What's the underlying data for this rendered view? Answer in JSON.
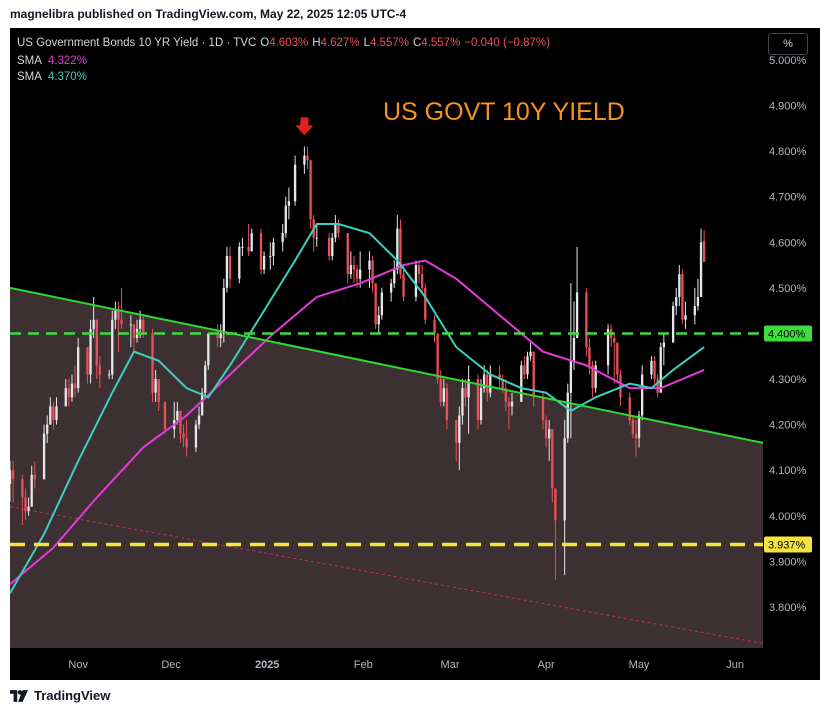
{
  "header": {
    "publisher_line": "magnelibra published on TradingView.com, May 22, 2025 12:05 UTC-4"
  },
  "footer": {
    "brand": "TradingView"
  },
  "legend": {
    "symbol": "US Government Bonds 10 YR Yield · 1D · TVC",
    "o_label": "O",
    "o_value": "4.603%",
    "h_label": "H",
    "h_value": "4.627%",
    "l_label": "L",
    "l_value": "4.557%",
    "c_label": "C",
    "c_value": "4.557%",
    "change": "−0.040 (−0.87%)",
    "sma1_label": "SMA",
    "sma1_value": "4.322%",
    "sma2_label": "SMA",
    "sma2_value": "4.370%"
  },
  "scale_button": "%",
  "colors": {
    "up": "#e6e6e6",
    "down": "#e8505b",
    "sma_fast": "#3ccfc0",
    "sma_slow": "#e63ad8",
    "trendline": "#32d632",
    "level_green": "#3ddc3d",
    "level_yellow": "#f5e43c",
    "annotation": "#f7931e",
    "arrow": "#e02020",
    "fill": "#3d3032",
    "dotted": "#c2305a"
  },
  "chart_data": {
    "type": "candlestick",
    "title": "US GOVT 10Y YIELD",
    "ylim": [
      3.71,
      5.07
    ],
    "yticks": [
      "5.000%",
      "4.900%",
      "4.800%",
      "4.700%",
      "4.600%",
      "4.500%",
      "4.400%",
      "4.300%",
      "4.200%",
      "4.100%",
      "4.000%",
      "3.900%",
      "3.800%"
    ],
    "ytick_values": [
      5.0,
      4.9,
      4.8,
      4.7,
      4.6,
      4.5,
      4.4,
      4.3,
      4.2,
      4.1,
      4.0,
      3.9,
      3.8
    ],
    "xticks": [
      "Nov",
      "Dec",
      "2025",
      "Feb",
      "Mar",
      "Apr",
      "May",
      "Jun"
    ],
    "xtick_dates": [
      "2024-11-01",
      "2024-12-01",
      "2025-01-01",
      "2025-02-01",
      "2025-03-01",
      "2025-04-01",
      "2025-05-01",
      "2025-06-01"
    ],
    "levels": [
      {
        "label": "4.400%",
        "value": 4.4,
        "color": "level_green"
      },
      {
        "label": "3.937%",
        "value": 3.937,
        "color": "level_yellow"
      }
    ],
    "trendline": {
      "start": [
        "2024-10-10",
        4.5
      ],
      "end": [
        "2025-06-10",
        4.16
      ]
    },
    "dotted_trendline": {
      "start": [
        "2024-10-10",
        4.02
      ],
      "end": [
        "2025-06-10",
        3.72
      ]
    },
    "arrow_marker": {
      "date": "2025-01-13",
      "value": 4.83
    },
    "ohlc": [
      [
        "2024-10-10",
        4.07,
        4.12,
        4.03,
        4.1
      ],
      [
        "2024-10-11",
        4.1,
        4.12,
        4.03,
        4.08
      ],
      [
        "2024-10-14",
        4.08,
        4.09,
        3.98,
        4.04
      ],
      [
        "2024-10-15",
        4.04,
        4.06,
        3.99,
        4.01
      ],
      [
        "2024-10-16",
        4.01,
        4.04,
        4.0,
        4.02
      ],
      [
        "2024-10-17",
        4.02,
        4.11,
        4.02,
        4.09
      ],
      [
        "2024-10-18",
        4.09,
        4.12,
        4.06,
        4.08
      ],
      [
        "2024-10-21",
        4.08,
        4.2,
        4.08,
        4.18
      ],
      [
        "2024-10-22",
        4.18,
        4.22,
        4.16,
        4.2
      ],
      [
        "2024-10-23",
        4.2,
        4.26,
        4.2,
        4.24
      ],
      [
        "2024-10-24",
        4.24,
        4.25,
        4.19,
        4.21
      ],
      [
        "2024-10-25",
        4.21,
        4.26,
        4.2,
        4.24
      ],
      [
        "2024-10-28",
        4.24,
        4.3,
        4.24,
        4.28
      ],
      [
        "2024-10-29",
        4.28,
        4.3,
        4.24,
        4.26
      ],
      [
        "2024-10-30",
        4.26,
        4.31,
        4.25,
        4.29
      ],
      [
        "2024-10-31",
        4.29,
        4.33,
        4.26,
        4.28
      ],
      [
        "2024-11-01",
        4.28,
        4.39,
        4.27,
        4.37
      ],
      [
        "2024-11-04",
        4.37,
        4.37,
        4.29,
        4.31
      ],
      [
        "2024-11-05",
        4.31,
        4.43,
        4.29,
        4.41
      ],
      [
        "2024-11-06",
        4.41,
        4.48,
        4.39,
        4.43
      ],
      [
        "2024-11-07",
        4.43,
        4.43,
        4.3,
        4.33
      ],
      [
        "2024-11-08",
        4.33,
        4.35,
        4.28,
        4.31
      ],
      [
        "2024-11-11",
        4.31,
        4.32,
        4.3,
        4.31
      ],
      [
        "2024-11-12",
        4.31,
        4.45,
        4.3,
        4.43
      ],
      [
        "2024-11-13",
        4.43,
        4.47,
        4.41,
        4.45
      ],
      [
        "2024-11-14",
        4.45,
        4.47,
        4.36,
        4.43
      ],
      [
        "2024-11-15",
        4.43,
        4.5,
        4.41,
        4.42
      ],
      [
        "2024-11-18",
        4.42,
        4.44,
        4.37,
        4.42
      ],
      [
        "2024-11-19",
        4.42,
        4.42,
        4.36,
        4.39
      ],
      [
        "2024-11-20",
        4.39,
        4.43,
        4.38,
        4.41
      ],
      [
        "2024-11-21",
        4.41,
        4.45,
        4.39,
        4.43
      ],
      [
        "2024-11-22",
        4.43,
        4.44,
        4.39,
        4.4
      ],
      [
        "2024-11-25",
        4.4,
        4.41,
        4.25,
        4.27
      ],
      [
        "2024-11-26",
        4.27,
        4.32,
        4.25,
        4.3
      ],
      [
        "2024-11-27",
        4.3,
        4.3,
        4.23,
        4.25
      ],
      [
        "2024-11-29",
        4.25,
        4.25,
        4.18,
        4.19
      ],
      [
        "2024-12-02",
        4.19,
        4.25,
        4.17,
        4.21
      ],
      [
        "2024-12-03",
        4.21,
        4.25,
        4.2,
        4.23
      ],
      [
        "2024-12-04",
        4.23,
        4.23,
        4.16,
        4.18
      ],
      [
        "2024-12-05",
        4.18,
        4.2,
        4.15,
        4.17
      ],
      [
        "2024-12-06",
        4.17,
        4.21,
        4.13,
        4.15
      ],
      [
        "2024-12-09",
        4.15,
        4.21,
        4.14,
        4.2
      ],
      [
        "2024-12-10",
        4.2,
        4.24,
        4.19,
        4.22
      ],
      [
        "2024-12-11",
        4.22,
        4.28,
        4.22,
        4.27
      ],
      [
        "2024-12-12",
        4.27,
        4.34,
        4.26,
        4.33
      ],
      [
        "2024-12-13",
        4.33,
        4.4,
        4.32,
        4.4
      ],
      [
        "2024-12-16",
        4.4,
        4.42,
        4.37,
        4.39
      ],
      [
        "2024-12-17",
        4.39,
        4.42,
        4.37,
        4.4
      ],
      [
        "2024-12-18",
        4.4,
        4.52,
        4.38,
        4.5
      ],
      [
        "2024-12-19",
        4.5,
        4.59,
        4.49,
        4.57
      ],
      [
        "2024-12-20",
        4.57,
        4.59,
        4.5,
        4.52
      ],
      [
        "2024-12-23",
        4.52,
        4.6,
        4.51,
        4.59
      ],
      [
        "2024-12-24",
        4.59,
        4.61,
        4.57,
        4.59
      ],
      [
        "2024-12-26",
        4.59,
        4.64,
        4.57,
        4.58
      ],
      [
        "2024-12-27",
        4.58,
        4.63,
        4.58,
        4.62
      ],
      [
        "2024-12-30",
        4.62,
        4.63,
        4.53,
        4.54
      ],
      [
        "2024-12-31",
        4.54,
        4.58,
        4.53,
        4.57
      ],
      [
        "2025-01-02",
        4.57,
        4.6,
        4.54,
        4.57
      ],
      [
        "2025-01-03",
        4.57,
        4.61,
        4.55,
        4.6
      ],
      [
        "2025-01-06",
        4.6,
        4.64,
        4.58,
        4.62
      ],
      [
        "2025-01-07",
        4.62,
        4.7,
        4.61,
        4.68
      ],
      [
        "2025-01-08",
        4.68,
        4.72,
        4.65,
        4.69
      ],
      [
        "2025-01-10",
        4.69,
        4.79,
        4.68,
        4.77
      ],
      [
        "2025-01-13",
        4.77,
        4.81,
        4.75,
        4.79
      ],
      [
        "2025-01-14",
        4.79,
        4.81,
        4.76,
        4.78
      ],
      [
        "2025-01-15",
        4.78,
        4.78,
        4.63,
        4.65
      ],
      [
        "2025-01-16",
        4.65,
        4.66,
        4.58,
        4.61
      ],
      [
        "2025-01-17",
        4.61,
        4.64,
        4.59,
        4.61
      ],
      [
        "2025-01-21",
        4.61,
        4.62,
        4.56,
        4.57
      ],
      [
        "2025-01-22",
        4.57,
        4.62,
        4.56,
        4.61
      ],
      [
        "2025-01-23",
        4.61,
        4.66,
        4.6,
        4.64
      ],
      [
        "2025-01-24",
        4.64,
        4.65,
        4.61,
        4.62
      ],
      [
        "2025-01-27",
        4.62,
        4.62,
        4.51,
        4.53
      ],
      [
        "2025-01-28",
        4.53,
        4.58,
        4.52,
        4.55
      ],
      [
        "2025-01-29",
        4.55,
        4.57,
        4.51,
        4.54
      ],
      [
        "2025-01-30",
        4.54,
        4.55,
        4.5,
        4.52
      ],
      [
        "2025-01-31",
        4.52,
        4.58,
        4.5,
        4.54
      ],
      [
        "2025-02-03",
        4.54,
        4.58,
        4.5,
        4.56
      ],
      [
        "2025-02-04",
        4.56,
        4.57,
        4.49,
        4.51
      ],
      [
        "2025-02-05",
        4.51,
        4.51,
        4.41,
        4.42
      ],
      [
        "2025-02-06",
        4.42,
        4.46,
        4.4,
        4.44
      ],
      [
        "2025-02-07",
        4.44,
        4.5,
        4.43,
        4.49
      ],
      [
        "2025-02-10",
        4.49,
        4.52,
        4.47,
        4.51
      ],
      [
        "2025-02-11",
        4.51,
        4.56,
        4.5,
        4.54
      ],
      [
        "2025-02-12",
        4.54,
        4.66,
        4.53,
        4.63
      ],
      [
        "2025-02-13",
        4.63,
        4.65,
        4.52,
        4.53
      ],
      [
        "2025-02-14",
        4.53,
        4.55,
        4.47,
        4.48
      ],
      [
        "2025-02-18",
        4.48,
        4.56,
        4.47,
        4.55
      ],
      [
        "2025-02-19",
        4.55,
        4.56,
        4.51,
        4.53
      ],
      [
        "2025-02-20",
        4.53,
        4.55,
        4.49,
        4.5
      ],
      [
        "2025-02-21",
        4.5,
        4.51,
        4.42,
        4.43
      ],
      [
        "2025-02-24",
        4.43,
        4.44,
        4.38,
        4.4
      ],
      [
        "2025-02-25",
        4.4,
        4.4,
        4.29,
        4.3
      ],
      [
        "2025-02-26",
        4.3,
        4.32,
        4.24,
        4.25
      ],
      [
        "2025-02-27",
        4.25,
        4.3,
        4.24,
        4.28
      ],
      [
        "2025-02-28",
        4.28,
        4.29,
        4.19,
        4.21
      ],
      [
        "2025-03-03",
        4.21,
        4.21,
        4.12,
        4.16
      ],
      [
        "2025-03-04",
        4.16,
        4.24,
        4.1,
        4.22
      ],
      [
        "2025-03-05",
        4.22,
        4.3,
        4.2,
        4.28
      ],
      [
        "2025-03-06",
        4.28,
        4.3,
        4.24,
        4.26
      ],
      [
        "2025-03-07",
        4.26,
        4.33,
        4.18,
        4.3
      ],
      [
        "2025-03-10",
        4.3,
        4.31,
        4.19,
        4.21
      ],
      [
        "2025-03-11",
        4.21,
        4.3,
        4.2,
        4.28
      ],
      [
        "2025-03-12",
        4.28,
        4.33,
        4.27,
        4.31
      ],
      [
        "2025-03-13",
        4.31,
        4.32,
        4.25,
        4.27
      ],
      [
        "2025-03-14",
        4.27,
        4.33,
        4.26,
        4.31
      ],
      [
        "2025-03-17",
        4.31,
        4.33,
        4.28,
        4.3
      ],
      [
        "2025-03-18",
        4.3,
        4.31,
        4.27,
        4.28
      ],
      [
        "2025-03-19",
        4.28,
        4.3,
        4.23,
        4.25
      ],
      [
        "2025-03-20",
        4.25,
        4.26,
        4.19,
        4.24
      ],
      [
        "2025-03-21",
        4.24,
        4.27,
        4.22,
        4.25
      ],
      [
        "2025-03-24",
        4.25,
        4.34,
        4.25,
        4.33
      ],
      [
        "2025-03-25",
        4.33,
        4.35,
        4.3,
        4.31
      ],
      [
        "2025-03-26",
        4.31,
        4.36,
        4.3,
        4.35
      ],
      [
        "2025-03-27",
        4.35,
        4.38,
        4.34,
        4.36
      ],
      [
        "2025-03-28",
        4.36,
        4.36,
        4.24,
        4.26
      ],
      [
        "2025-03-31",
        4.26,
        4.27,
        4.19,
        4.21
      ],
      [
        "2025-04-01",
        4.21,
        4.22,
        4.15,
        4.17
      ],
      [
        "2025-04-02",
        4.17,
        4.21,
        4.12,
        4.19
      ],
      [
        "2025-04-03",
        4.19,
        4.19,
        4.03,
        4.06
      ],
      [
        "2025-04-04",
        4.06,
        4.06,
        3.86,
        3.99
      ],
      [
        "2025-04-07",
        3.99,
        4.21,
        3.87,
        4.17
      ],
      [
        "2025-04-08",
        4.17,
        4.29,
        4.16,
        4.27
      ],
      [
        "2025-04-09",
        4.27,
        4.51,
        4.17,
        4.34
      ],
      [
        "2025-04-10",
        4.34,
        4.47,
        4.32,
        4.39
      ],
      [
        "2025-04-11",
        4.39,
        4.59,
        4.39,
        4.49
      ],
      [
        "2025-04-14",
        4.49,
        4.5,
        4.35,
        4.37
      ],
      [
        "2025-04-15",
        4.37,
        4.39,
        4.31,
        4.33
      ],
      [
        "2025-04-16",
        4.33,
        4.34,
        4.26,
        4.28
      ],
      [
        "2025-04-17",
        4.28,
        4.34,
        4.27,
        4.33
      ],
      [
        "2025-04-21",
        4.33,
        4.42,
        4.31,
        4.41
      ],
      [
        "2025-04-22",
        4.41,
        4.42,
        4.37,
        4.39
      ],
      [
        "2025-04-23",
        4.39,
        4.4,
        4.29,
        4.38
      ],
      [
        "2025-04-24",
        4.38,
        4.38,
        4.29,
        4.31
      ],
      [
        "2025-04-25",
        4.31,
        4.32,
        4.24,
        4.26
      ],
      [
        "2025-04-28",
        4.26,
        4.27,
        4.2,
        4.21
      ],
      [
        "2025-04-29",
        4.21,
        4.22,
        4.17,
        4.18
      ],
      [
        "2025-04-30",
        4.18,
        4.21,
        4.13,
        4.17
      ],
      [
        "2025-05-01",
        4.17,
        4.23,
        4.15,
        4.22
      ],
      [
        "2025-05-02",
        4.22,
        4.33,
        4.21,
        4.31
      ],
      [
        "2025-05-05",
        4.31,
        4.35,
        4.3,
        4.34
      ],
      [
        "2025-05-06",
        4.34,
        4.35,
        4.29,
        4.3
      ],
      [
        "2025-05-07",
        4.3,
        4.31,
        4.26,
        4.27
      ],
      [
        "2025-05-08",
        4.27,
        4.38,
        4.27,
        4.37
      ],
      [
        "2025-05-09",
        4.37,
        4.4,
        4.33,
        4.38
      ],
      [
        "2025-05-12",
        4.38,
        4.47,
        4.38,
        4.46
      ],
      [
        "2025-05-13",
        4.46,
        4.5,
        4.44,
        4.48
      ],
      [
        "2025-05-14",
        4.48,
        4.55,
        4.46,
        4.53
      ],
      [
        "2025-05-15",
        4.53,
        4.54,
        4.42,
        4.43
      ],
      [
        "2025-05-16",
        4.43,
        4.47,
        4.41,
        4.44
      ],
      [
        "2025-05-19",
        4.44,
        4.5,
        4.42,
        4.46
      ],
      [
        "2025-05-20",
        4.46,
        4.52,
        4.45,
        4.48
      ],
      [
        "2025-05-21",
        4.48,
        4.63,
        4.48,
        4.6
      ],
      [
        "2025-05-22",
        4.603,
        4.627,
        4.557,
        4.557
      ]
    ],
    "sma_fast": [
      [
        "2024-10-10",
        3.83
      ],
      [
        "2024-10-21",
        3.96
      ],
      [
        "2024-11-01",
        4.12
      ],
      [
        "2024-11-12",
        4.27
      ],
      [
        "2024-11-19",
        4.36
      ],
      [
        "2024-11-27",
        4.34
      ],
      [
        "2024-12-06",
        4.28
      ],
      [
        "2024-12-13",
        4.26
      ],
      [
        "2024-12-20",
        4.33
      ],
      [
        "2024-12-31",
        4.45
      ],
      [
        "2025-01-10",
        4.56
      ],
      [
        "2025-01-17",
        4.64
      ],
      [
        "2025-01-24",
        4.64
      ],
      [
        "2025-02-03",
        4.62
      ],
      [
        "2025-02-12",
        4.56
      ],
      [
        "2025-02-21",
        4.48
      ],
      [
        "2025-03-03",
        4.37
      ],
      [
        "2025-03-14",
        4.31
      ],
      [
        "2025-03-24",
        4.28
      ],
      [
        "2025-04-01",
        4.27
      ],
      [
        "2025-04-09",
        4.23
      ],
      [
        "2025-04-17",
        4.26
      ],
      [
        "2025-04-28",
        4.29
      ],
      [
        "2025-05-05",
        4.28
      ],
      [
        "2025-05-12",
        4.32
      ],
      [
        "2025-05-22",
        4.37
      ]
    ],
    "sma_slow": [
      [
        "2024-10-10",
        3.85
      ],
      [
        "2024-10-24",
        3.93
      ],
      [
        "2024-11-07",
        4.04
      ],
      [
        "2024-11-22",
        4.15
      ],
      [
        "2024-12-06",
        4.22
      ],
      [
        "2024-12-20",
        4.31
      ],
      [
        "2025-01-03",
        4.4
      ],
      [
        "2025-01-17",
        4.48
      ],
      [
        "2025-01-31",
        4.51
      ],
      [
        "2025-02-14",
        4.55
      ],
      [
        "2025-02-21",
        4.56
      ],
      [
        "2025-03-03",
        4.52
      ],
      [
        "2025-03-17",
        4.44
      ],
      [
        "2025-03-31",
        4.36
      ],
      [
        "2025-04-14",
        4.33
      ],
      [
        "2025-04-28",
        4.28
      ],
      [
        "2025-05-08",
        4.28
      ],
      [
        "2025-05-22",
        4.32
      ]
    ]
  }
}
